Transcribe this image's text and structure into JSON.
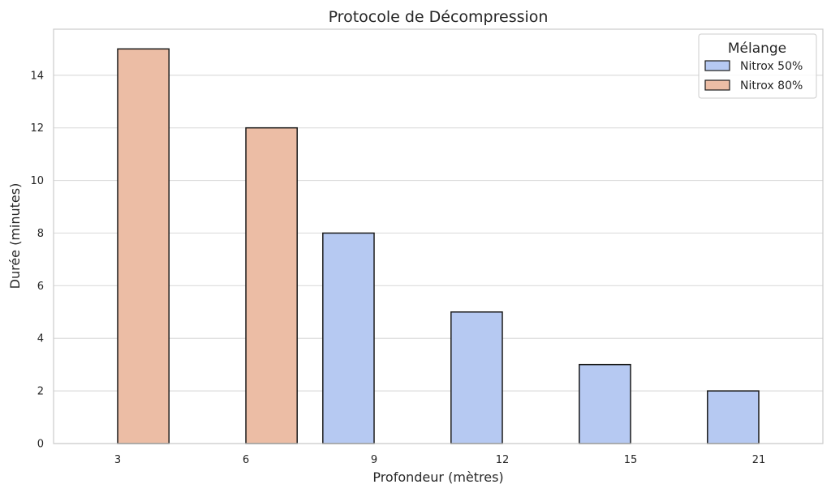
{
  "chart_data": {
    "type": "bar",
    "title": "Protocole de Décompression",
    "xlabel": "Profondeur (mètres)",
    "ylabel": "Durée (minutes)",
    "categories": [
      "3",
      "6",
      "9",
      "12",
      "15",
      "21"
    ],
    "series": [
      {
        "name": "Nitrox 50%",
        "color": "#b6c9f2",
        "values": [
          null,
          null,
          8,
          5,
          3,
          2
        ]
      },
      {
        "name": "Nitrox 80%",
        "color": "#ecbda5",
        "values": [
          15,
          12,
          null,
          null,
          null,
          null
        ]
      }
    ],
    "ylim": [
      0,
      15.75
    ],
    "yticks": [
      0,
      2,
      4,
      6,
      8,
      10,
      12,
      14
    ],
    "grid": "horizontal",
    "legend": {
      "title": "Mélange",
      "position": "top-right"
    }
  }
}
